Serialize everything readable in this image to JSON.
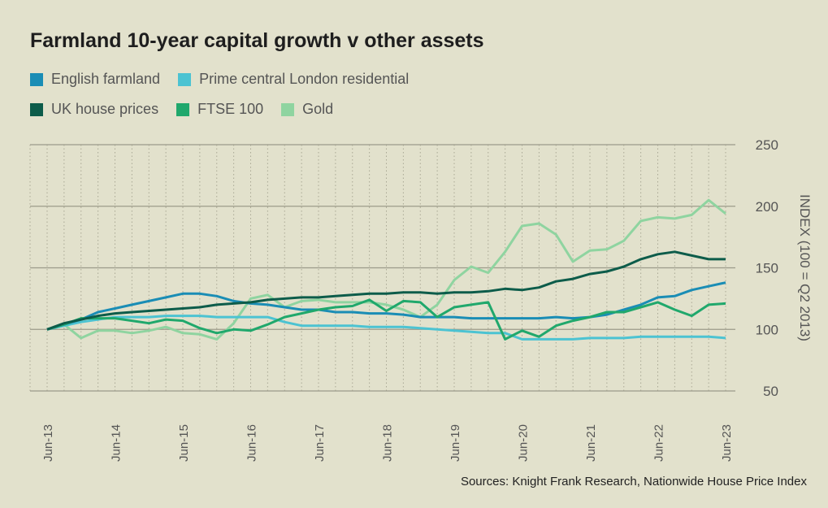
{
  "chart_data": {
    "type": "line",
    "title": "Farmland 10-year capital growth v other assets",
    "ylabel": "INDEX (100 = Q2 2013)",
    "xlabel": "",
    "ylim": [
      50,
      250
    ],
    "yticks": [
      250,
      200,
      150,
      100,
      50
    ],
    "x_tick_labels": [
      "Jun-13",
      "Jun-14",
      "Jun-15",
      "Jun-16",
      "Jun-17",
      "Jun-18",
      "Jun-19",
      "Jun-20",
      "Jun-21",
      "Jun-22",
      "Jun-23"
    ],
    "x_frequency": "quarterly",
    "grid": "horizontal solid, vertical dotted",
    "legend_placement": "top-left",
    "series": [
      {
        "name": "English farmland",
        "color": "#1a8db5",
        "values": [
          100,
          104,
          108,
          114,
          117,
          120,
          123,
          126,
          129,
          129,
          127,
          123,
          121,
          120,
          118,
          116,
          116,
          114,
          114,
          113,
          113,
          112,
          110,
          110,
          110,
          109,
          109,
          109,
          109,
          109,
          110,
          109,
          110,
          112,
          116,
          120,
          126,
          127,
          132,
          135,
          138
        ]
      },
      {
        "name": "Prime central London residential",
        "color": "#4cc3d2",
        "values": [
          100,
          103,
          106,
          108,
          110,
          110,
          110,
          111,
          111,
          111,
          110,
          110,
          110,
          110,
          106,
          103,
          103,
          103,
          103,
          102,
          102,
          102,
          101,
          100,
          99,
          98,
          97,
          97,
          92,
          92,
          92,
          92,
          93,
          93,
          93,
          94,
          94,
          94,
          94,
          94,
          93
        ]
      },
      {
        "name": "UK house prices",
        "color": "#0d5c4a",
        "values": [
          100,
          105,
          108,
          111,
          113,
          114,
          115,
          116,
          117,
          118,
          120,
          121,
          122,
          124,
          125,
          126,
          126,
          127,
          128,
          129,
          129,
          130,
          130,
          129,
          130,
          130,
          131,
          133,
          132,
          134,
          139,
          141,
          145,
          147,
          151,
          157,
          161,
          163,
          160,
          157,
          157
        ]
      },
      {
        "name": "FTSE 100",
        "color": "#20a86c",
        "values": [
          100,
          104,
          109,
          109,
          109,
          107,
          105,
          108,
          107,
          101,
          97,
          100,
          99,
          104,
          110,
          113,
          116,
          118,
          119,
          124,
          115,
          123,
          122,
          110,
          118,
          120,
          122,
          92,
          99,
          94,
          103,
          107,
          110,
          114,
          114,
          118,
          122,
          116,
          111,
          120,
          121
        ]
      },
      {
        "name": "Gold",
        "color": "#8fd4a0",
        "values": [
          100,
          104,
          93,
          99,
          99,
          97,
          99,
          102,
          97,
          96,
          92,
          105,
          125,
          128,
          118,
          123,
          124,
          122,
          122,
          122,
          120,
          116,
          110,
          120,
          140,
          151,
          146,
          163,
          184,
          186,
          177,
          155,
          164,
          165,
          172,
          188,
          191,
          190,
          193,
          205,
          194
        ]
      }
    ],
    "source": "Sources: Knight Frank Research, Nationwide House Price Index"
  }
}
